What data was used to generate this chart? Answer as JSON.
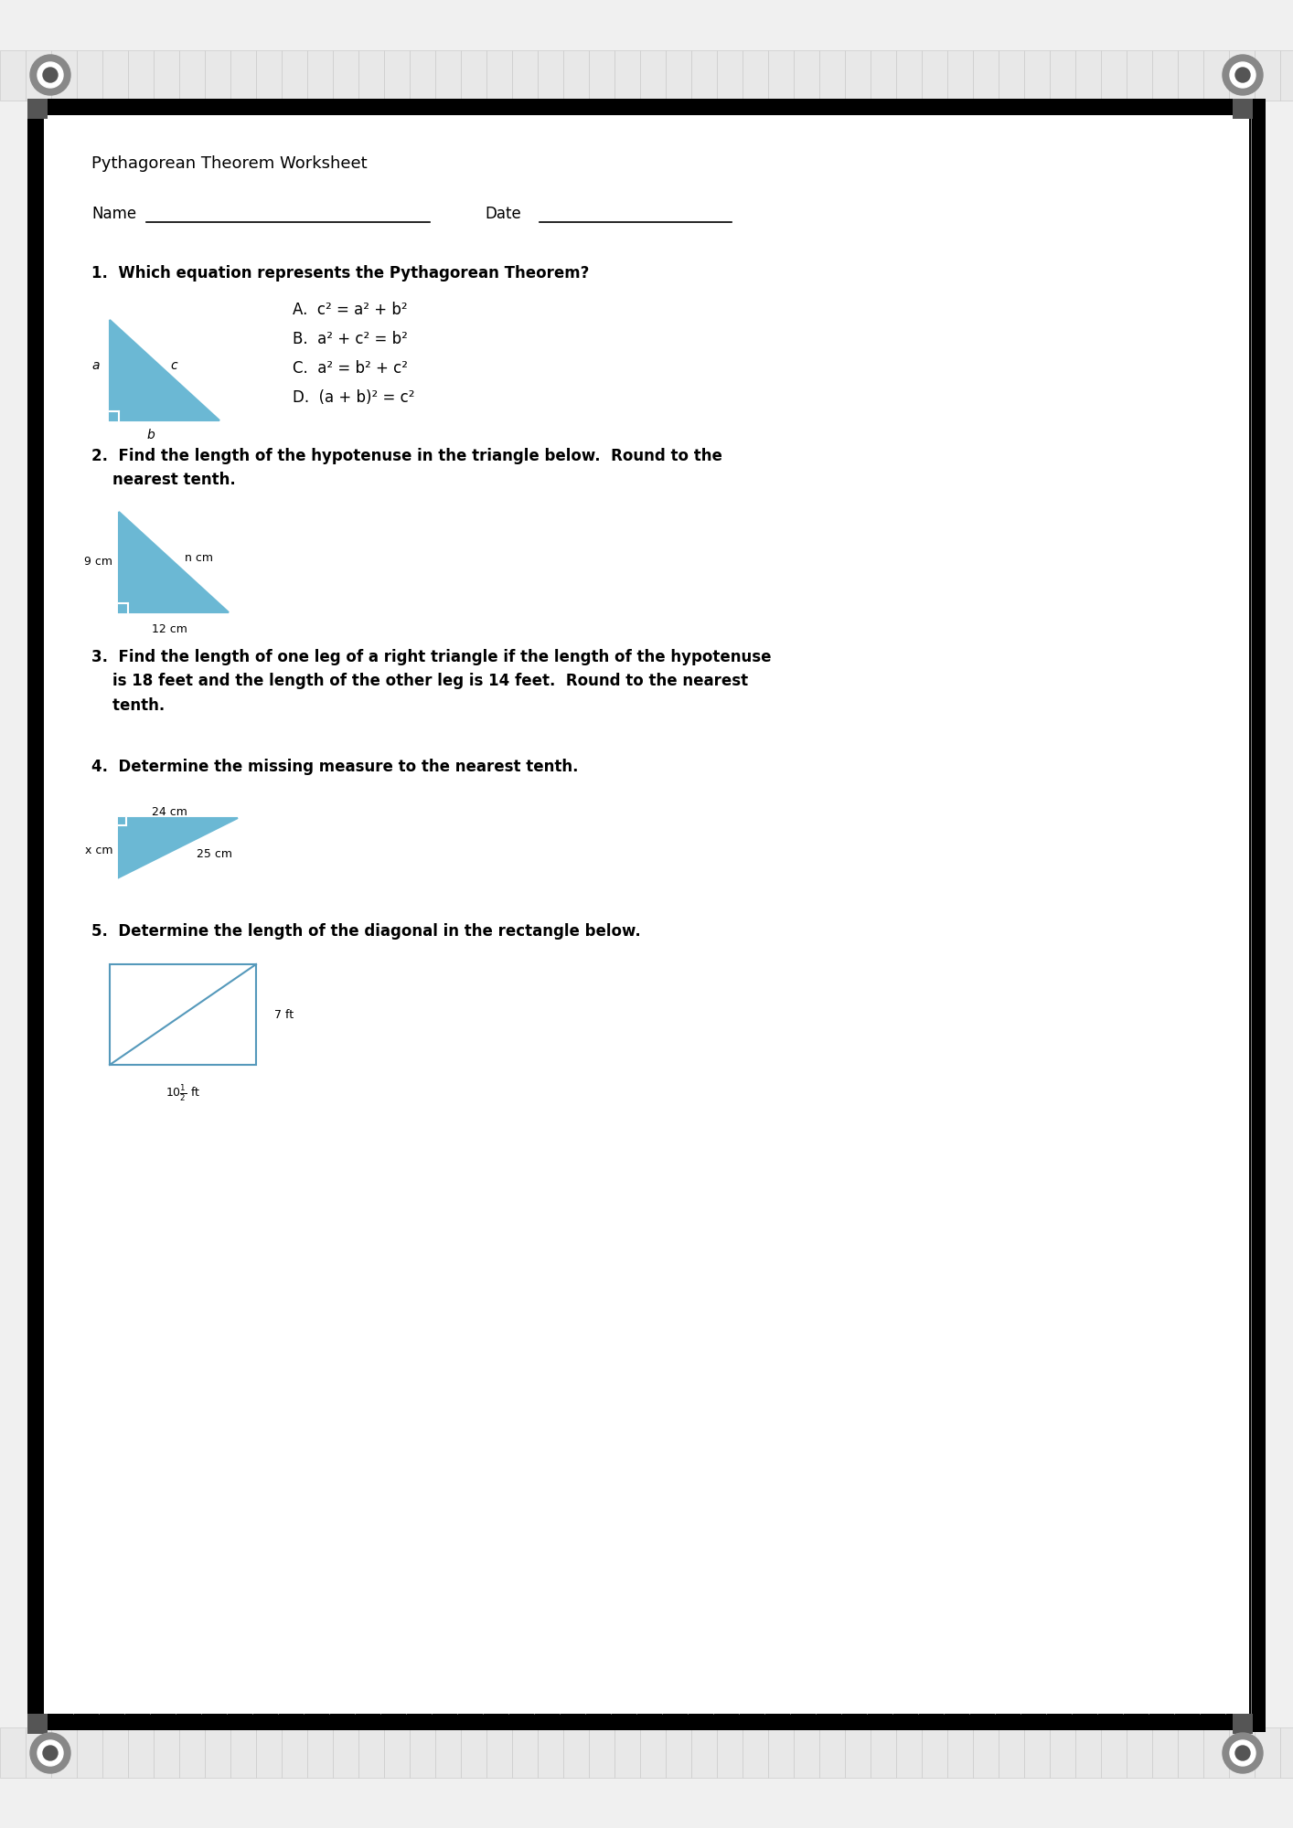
{
  "title": "Pythagorean Theorem Worksheet",
  "name_label": "Name",
  "date_label": "Date",
  "q1_text": "1.  Which equation represents the Pythagorean Theorem?",
  "q1_options": [
    "A.  c² = a² + b²",
    "B.  a² + c² = b²",
    "C.  a² = b² + c²",
    "D.  (a + b)² = c²"
  ],
  "q2_text": "2.  Find the length of the hypotenuse in the triangle below.  Round to the\n    nearest tenth.",
  "q3_text": "3.  Find the length of one leg of a right triangle if the length of the hypotenuse\n    is 18 feet and the length of the other leg is 14 feet.  Round to the nearest\n    tenth.",
  "q4_text": "4.  Determine the missing measure to the nearest tenth.",
  "q5_text": "5.  Determine the length of the diagonal in the rectangle below.",
  "bg_color": "#ffffff",
  "border_color": "#000000",
  "triangle_color": "#6bb8d4",
  "text_color": "#000000",
  "grid_color": "#cccccc"
}
